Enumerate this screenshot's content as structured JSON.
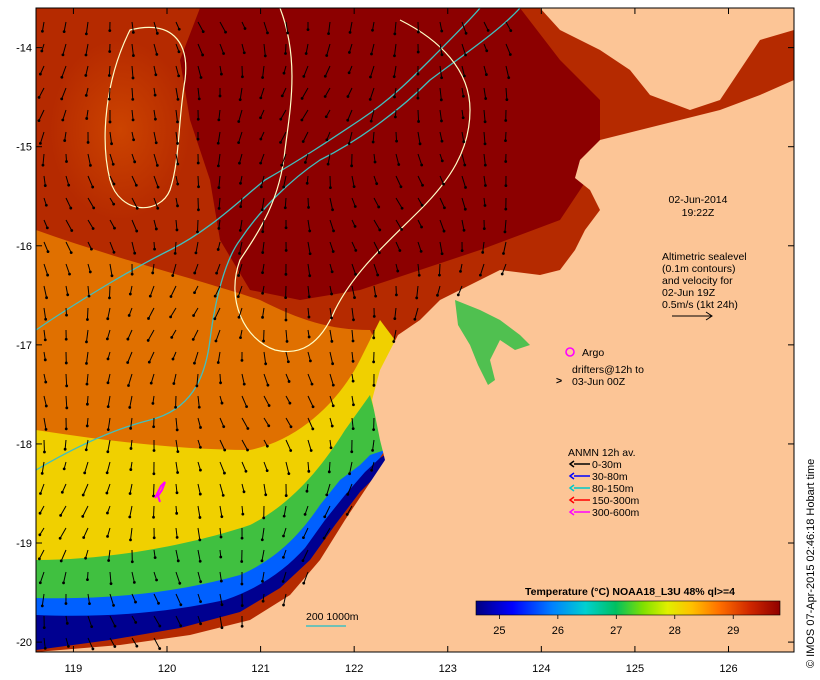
{
  "map": {
    "lon_ticks": [
      "119",
      "120",
      "121",
      "122",
      "123",
      "124",
      "125",
      "126"
    ],
    "lat_ticks": [
      "-14",
      "-15",
      "-16",
      "-17",
      "-18",
      "-19",
      "-20"
    ],
    "lon_range": [
      118.6,
      126.7
    ],
    "lat_range": [
      -13.6,
      -20.1
    ]
  },
  "annotations": {
    "date": "02-Jun-2014",
    "time": "19:22Z",
    "altimetry": [
      "Altimetric sealevel",
      "(0.1m contours)",
      "and velocity for",
      "02-Jun 19Z",
      "0.5m/s (1kt 24h)"
    ],
    "argo_label": "Argo",
    "drifters_label": [
      "drifters@12h to",
      "03-Jun 00Z"
    ],
    "drifter_symbol": ">"
  },
  "legend": {
    "title": "ANMN 12h av.",
    "items": [
      {
        "label": "0-30m",
        "color": "#000000"
      },
      {
        "label": "30-80m",
        "color": "#0000ff"
      },
      {
        "label": "80-150m",
        "color": "#00c8c8"
      },
      {
        "label": "150-300m",
        "color": "#ff0000"
      },
      {
        "label": "300-600m",
        "color": "#ff00ff"
      }
    ]
  },
  "colorbar": {
    "title": "Temperature (°C) NOAA18_L3U 48% ql>=4",
    "ticks": [
      "25",
      "26",
      "27",
      "28",
      "29"
    ],
    "range": [
      24.6,
      29.8
    ]
  },
  "scale": {
    "label": "200 1000m",
    "color": "#40c0c0"
  },
  "credit": "© IMOS 07-Apr-2015 02:46:18 Hobart time",
  "colors": {
    "land": "#fcc596",
    "sst_warm": "#b52a00",
    "sst_hot": "#8c0000",
    "contour": "#ffffc8",
    "isobath": "#40c0c0",
    "argo": "#ff00ff"
  }
}
